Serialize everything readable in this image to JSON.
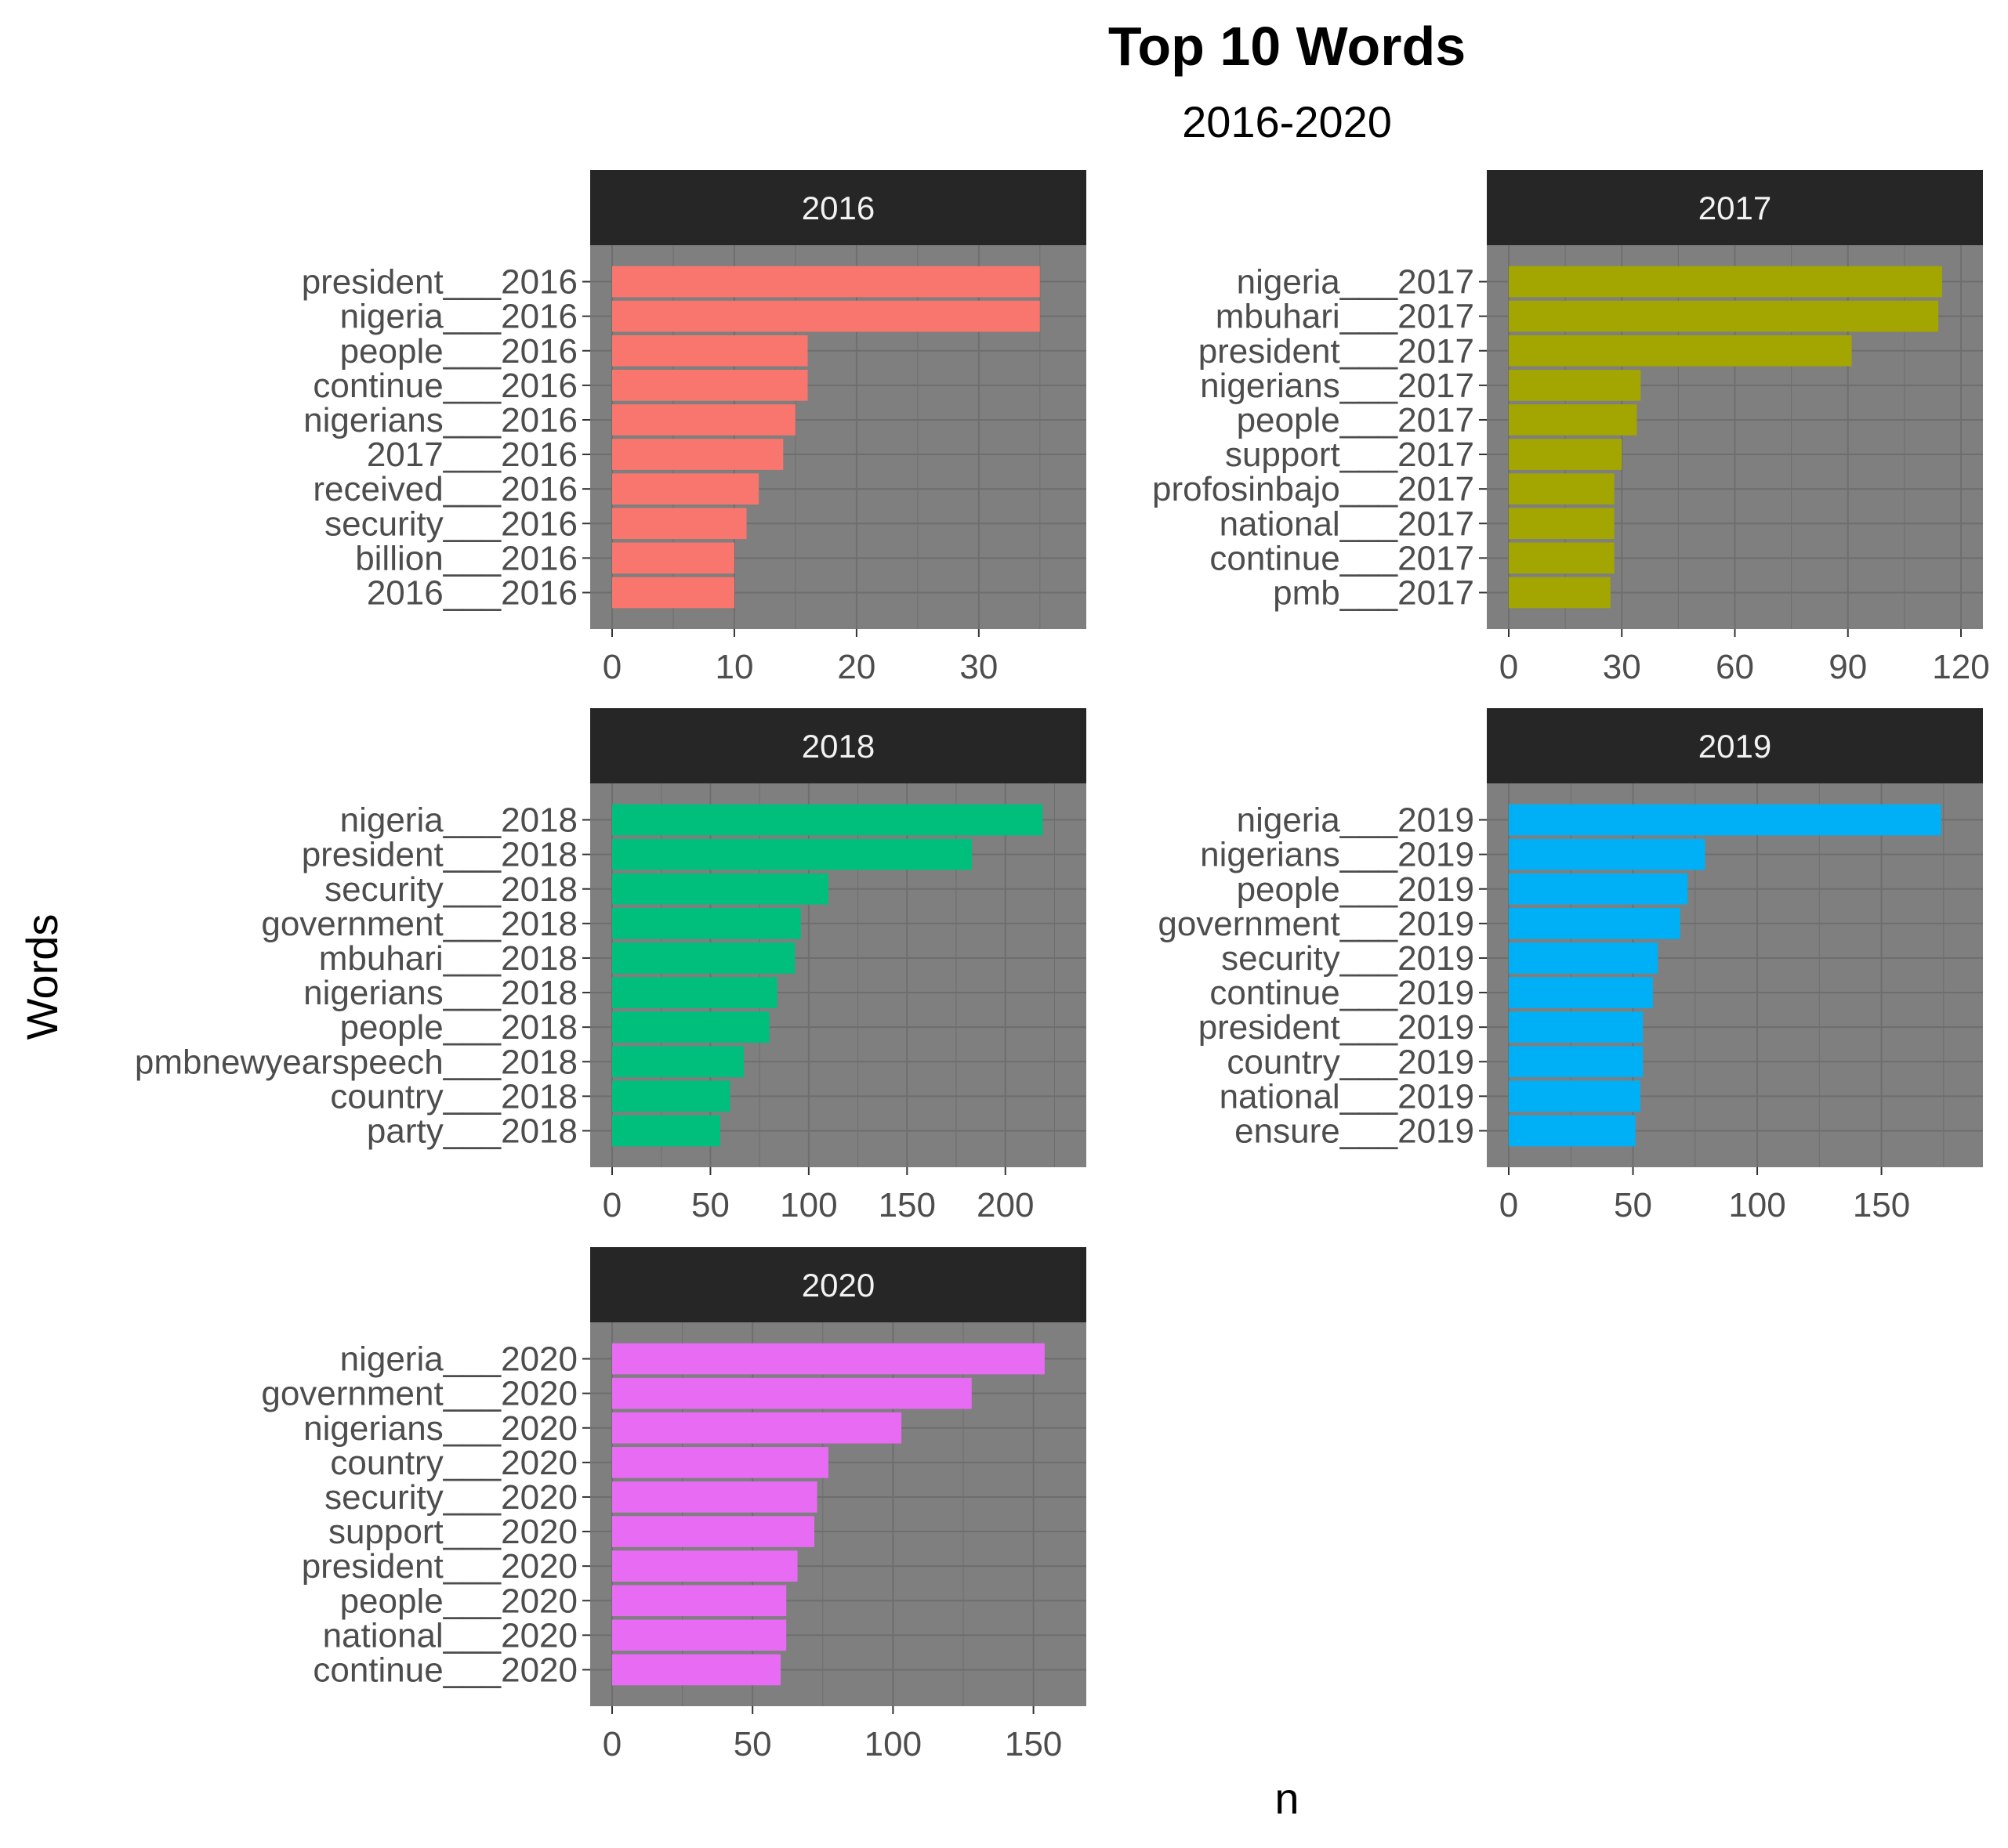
{
  "chart_data": {
    "type": "bar",
    "orientation": "horizontal",
    "title": "Top 10 Words",
    "subtitle": "2016-2020",
    "xlabel": "n",
    "ylabel": "Words",
    "grid": true,
    "panel_background": "#7f7f7f",
    "strip_background": "#262626",
    "facets": [
      {
        "label": "2016",
        "color": "#F8766D",
        "xlim": [
          0,
          37
        ],
        "xticks": [
          0,
          10,
          20,
          30
        ],
        "categories": [
          "president___2016",
          "nigeria___2016",
          "people___2016",
          "continue___2016",
          "nigerians___2016",
          "2017___2016",
          "received___2016",
          "security___2016",
          "billion___2016",
          "2016___2016"
        ],
        "values": [
          35,
          35,
          16,
          16,
          15,
          14,
          12,
          11,
          10,
          10
        ]
      },
      {
        "label": "2017",
        "color": "#A3A500",
        "xlim": [
          0,
          120
        ],
        "xticks": [
          0,
          30,
          60,
          90,
          120
        ],
        "categories": [
          "nigeria___2017",
          "mbuhari___2017",
          "president___2017",
          "nigerians___2017",
          "people___2017",
          "support___2017",
          "profosinbajo___2017",
          "national___2017",
          "continue___2017",
          "pmb___2017"
        ],
        "values": [
          115,
          114,
          91,
          35,
          34,
          30,
          28,
          28,
          28,
          27
        ]
      },
      {
        "label": "2018",
        "color": "#00BF7D",
        "xlim": [
          0,
          230
        ],
        "xticks": [
          0,
          50,
          100,
          150,
          200
        ],
        "categories": [
          "nigeria___2018",
          "president___2018",
          "security___2018",
          "government___2018",
          "mbuhari___2018",
          "nigerians___2018",
          "people___2018",
          "pmbnewyearspeech___2018",
          "country___2018",
          "party___2018"
        ],
        "values": [
          219,
          183,
          110,
          96,
          93,
          84,
          80,
          67,
          60,
          55
        ]
      },
      {
        "label": "2019",
        "color": "#00B0F6",
        "xlim": [
          0,
          182
        ],
        "xticks": [
          0,
          50,
          100,
          150
        ],
        "categories": [
          "nigeria___2019",
          "nigerians___2019",
          "people___2019",
          "government___2019",
          "security___2019",
          "continue___2019",
          "president___2019",
          "country___2019",
          "national___2019",
          "ensure___2019"
        ],
        "values": [
          174,
          79,
          72,
          69,
          60,
          58,
          54,
          54,
          53,
          51
        ]
      },
      {
        "label": "2020",
        "color": "#E76BF3",
        "xlim": [
          0,
          161
        ],
        "xticks": [
          0,
          50,
          100,
          150
        ],
        "categories": [
          "nigeria___2020",
          "government___2020",
          "nigerians___2020",
          "country___2020",
          "security___2020",
          "support___2020",
          "president___2020",
          "people___2020",
          "national___2020",
          "continue___2020"
        ],
        "values": [
          154,
          128,
          103,
          77,
          73,
          72,
          66,
          62,
          62,
          60
        ]
      }
    ]
  }
}
